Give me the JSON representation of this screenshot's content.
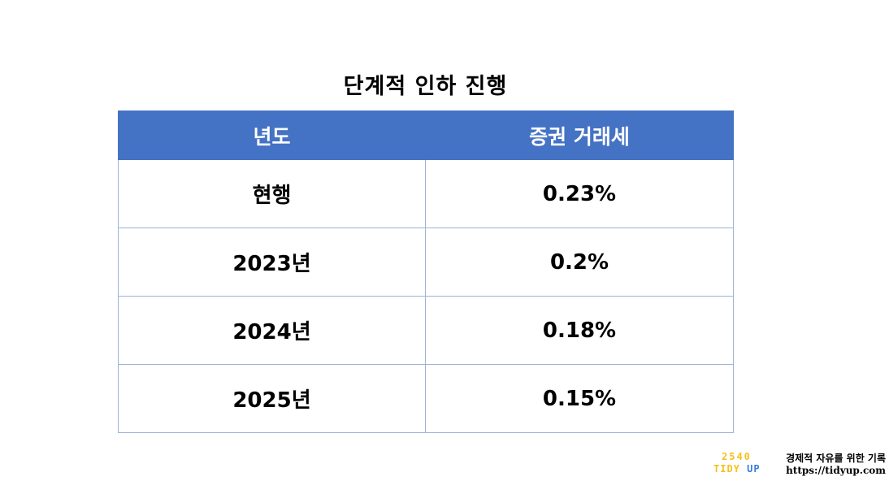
{
  "title": "단계적 인하 진행",
  "table": {
    "headers": [
      "년도",
      "증권 거래세"
    ],
    "rows": [
      [
        "현행",
        "0.23%"
      ],
      [
        "2023년",
        "0.2%"
      ],
      [
        "2024년",
        "0.18%"
      ],
      [
        "2025년",
        "0.15%"
      ]
    ]
  },
  "colors": {
    "header_bg": "#4472c4",
    "header_text": "#ffffff",
    "grid_line": "#9db3d9",
    "logo_yellow": "#f2c21b",
    "logo_blue": "#3b7dd8"
  },
  "brand": {
    "logo_number": "2540",
    "logo_word_1": "TIDY",
    "logo_word_2": "UP",
    "slogan": "경제적 자유를 위한 기록",
    "url": "https://tidyup.com"
  }
}
